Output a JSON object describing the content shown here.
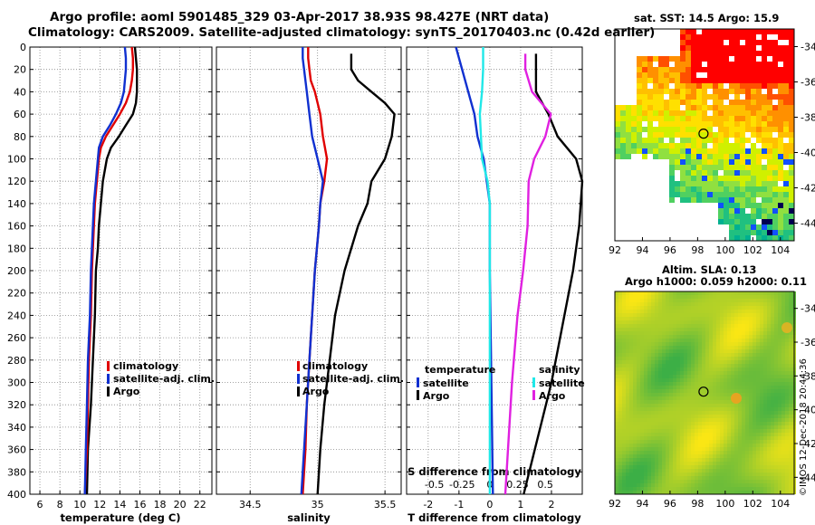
{
  "header": {
    "title1": "Argo profile: aoml 5901485_329 03-Apr-2017 38.93S 98.427E (NRT data)",
    "title2": "Climatology: CARS2009. Satellite-adjusted climatology: synTS_20170403.nc (0.42d earlier)"
  },
  "colors": {
    "climatology": "#e00000",
    "satellite": "#1030d0",
    "argo": "#000000",
    "sat_s": "#20e8e8",
    "argo_s": "#e020e0"
  },
  "chart_data": [
    {
      "type": "line",
      "name": "temperature-profile",
      "xlabel": "temperature (deg C)",
      "ylabel": "pressure",
      "xlim": [
        5,
        23.2
      ],
      "ylim": [
        400,
        0
      ],
      "xticks": [
        6,
        8,
        10,
        12,
        14,
        16,
        18,
        20,
        22
      ],
      "yticks": [
        0,
        20,
        40,
        60,
        80,
        100,
        120,
        140,
        160,
        180,
        200,
        220,
        240,
        260,
        280,
        300,
        320,
        340,
        360,
        380,
        400
      ],
      "legend": [
        "climatology",
        "satellite-adj. clim.",
        "Argo"
      ],
      "series": [
        {
          "name": "climatology",
          "y": [
            0,
            10,
            20,
            30,
            40,
            50,
            60,
            70,
            80,
            90,
            100,
            120,
            140,
            160,
            180,
            200,
            240,
            280,
            320,
            360,
            400
          ],
          "values": [
            15.2,
            15.3,
            15.3,
            15.2,
            15,
            14.6,
            14,
            13.3,
            12.6,
            12.1,
            11.9,
            11.7,
            11.5,
            11.4,
            11.3,
            11.2,
            11.1,
            10.9,
            10.8,
            10.7,
            10.5
          ]
        },
        {
          "name": "satellite-adj. clim.",
          "y": [
            0,
            10,
            20,
            30,
            40,
            50,
            60,
            70,
            80,
            90,
            100,
            120,
            140,
            160,
            180,
            200,
            240,
            280,
            320,
            360,
            400
          ],
          "values": [
            14.5,
            14.6,
            14.6,
            14.5,
            14.4,
            14.1,
            13.6,
            13,
            12.3,
            11.9,
            11.8,
            11.6,
            11.4,
            11.3,
            11.2,
            11.1,
            11,
            10.8,
            10.7,
            10.6,
            10.5
          ]
        },
        {
          "name": "Argo",
          "y": [
            0,
            10,
            20,
            30,
            40,
            50,
            60,
            70,
            80,
            90,
            100,
            120,
            140,
            160,
            180,
            200,
            240,
            280,
            320,
            360,
            400
          ],
          "values": [
            15.5,
            15.6,
            15.7,
            15.7,
            15.7,
            15.6,
            15.3,
            14.6,
            13.9,
            13.1,
            12.7,
            12.3,
            12.1,
            11.9,
            11.8,
            11.6,
            11.5,
            11.3,
            11.1,
            10.8,
            10.7
          ]
        }
      ]
    },
    {
      "type": "line",
      "name": "salinity-profile",
      "xlabel": "salinity",
      "ylabel": "pressure",
      "xlim": [
        34.25,
        35.62
      ],
      "ylim": [
        400,
        0
      ],
      "xticks": [
        34.5,
        35,
        35.5
      ],
      "xticklabels": [
        "34.5",
        "35",
        "35.5"
      ],
      "legend": [
        "climatology",
        "satellite-adj. clim.",
        "Argo"
      ],
      "series": [
        {
          "name": "climatology",
          "y": [
            0,
            10,
            20,
            30,
            40,
            60,
            80,
            100,
            120,
            140,
            160,
            200,
            240,
            280,
            320,
            360,
            400
          ],
          "values": [
            34.93,
            34.93,
            34.94,
            34.95,
            34.98,
            35.02,
            35.04,
            35.07,
            35.05,
            35.02,
            35.01,
            34.98,
            34.96,
            34.94,
            34.92,
            34.91,
            34.89
          ]
        },
        {
          "name": "satellite-adj. clim.",
          "y": [
            0,
            10,
            20,
            30,
            40,
            60,
            80,
            100,
            120,
            140,
            160,
            200,
            240,
            280,
            320,
            360,
            400
          ],
          "values": [
            34.89,
            34.89,
            34.9,
            34.91,
            34.92,
            34.94,
            34.96,
            35,
            35.04,
            35.02,
            35.01,
            34.98,
            34.96,
            34.94,
            34.92,
            34.9,
            34.88
          ]
        },
        {
          "name": "Argo",
          "y": [
            6,
            20,
            30,
            40,
            50,
            60,
            80,
            100,
            120,
            140,
            160,
            200,
            240,
            280,
            320,
            360,
            400
          ],
          "values": [
            35.25,
            35.25,
            35.3,
            35.4,
            35.5,
            35.57,
            35.55,
            35.5,
            35.4,
            35.37,
            35.3,
            35.2,
            35.13,
            35.09,
            35.05,
            35.02,
            35.0
          ]
        }
      ]
    },
    {
      "type": "line",
      "name": "difference-profile",
      "xlabel": "T difference from climatology",
      "xlabel_top": "S difference from climatology",
      "xlim": [
        -2.7,
        3.0
      ],
      "ylim": [
        400,
        0
      ],
      "xticks": [
        -2,
        -1,
        0,
        1,
        2
      ],
      "xticks_s": [
        -0.5,
        -0.25,
        0,
        0.25,
        0.5
      ],
      "xticklabels_s": [
        "-0.5",
        "-0.25",
        "0",
        "0.25",
        "0.5"
      ],
      "legend_t": [
        "temperature",
        "satellite",
        "Argo"
      ],
      "legend_s": [
        "salinity",
        "satellite",
        "Argo"
      ],
      "series": [
        {
          "name": "T satellite",
          "y": [
            0,
            20,
            40,
            60,
            80,
            100,
            120,
            140,
            200,
            300,
            400
          ],
          "values": [
            -1.1,
            -0.9,
            -0.7,
            -0.5,
            -0.4,
            -0.2,
            -0.1,
            0,
            0,
            0.05,
            0.1
          ]
        },
        {
          "name": "T Argo",
          "y": [
            6,
            20,
            40,
            60,
            80,
            100,
            120,
            160,
            200,
            300,
            400
          ],
          "values": [
            1.5,
            1.5,
            1.5,
            1.9,
            2.2,
            2.8,
            3.0,
            2.9,
            2.7,
            2.0,
            1.1
          ]
        },
        {
          "name": "S satellite",
          "y": [
            0,
            20,
            40,
            60,
            80,
            100,
            120,
            140,
            200,
            300,
            400
          ],
          "values": [
            -0.06,
            -0.06,
            -0.07,
            -0.09,
            -0.08,
            -0.07,
            -0.02,
            0,
            0,
            0,
            0
          ]
        },
        {
          "name": "S Argo",
          "y": [
            6,
            20,
            40,
            60,
            80,
            100,
            120,
            160,
            200,
            240,
            300,
            400
          ],
          "values": [
            0.32,
            0.32,
            0.38,
            0.55,
            0.5,
            0.4,
            0.35,
            0.34,
            0.3,
            0.25,
            0.2,
            0.14
          ]
        }
      ]
    },
    {
      "type": "heatmap",
      "name": "sst-map",
      "title": "sat. SST: 14.5 Argo: 15.9",
      "xlim": [
        92,
        105
      ],
      "ylim": [
        -45,
        -33
      ],
      "xticks": [
        92,
        94,
        96,
        98,
        100,
        102,
        104
      ],
      "yticks": [
        -34,
        -36,
        -38,
        -40,
        -42,
        -44
      ],
      "marker": [
        98.427,
        -38.93
      ]
    },
    {
      "type": "heatmap",
      "name": "sla-map",
      "title": "Altim. SLA: 0.13",
      "subtitle": "Argo h1000: 0.059 h2000: 0.11",
      "xlim": [
        92,
        105
      ],
      "ylim": [
        -45,
        -33
      ],
      "xticks": [
        92,
        94,
        96,
        98,
        100,
        102,
        104
      ],
      "yticks": [
        -34,
        -36,
        -38,
        -40,
        -42,
        -44
      ],
      "marker": [
        98.427,
        -38.93
      ]
    }
  ],
  "stamp": "©IMOS 12-Dec-2018 20:44:36"
}
